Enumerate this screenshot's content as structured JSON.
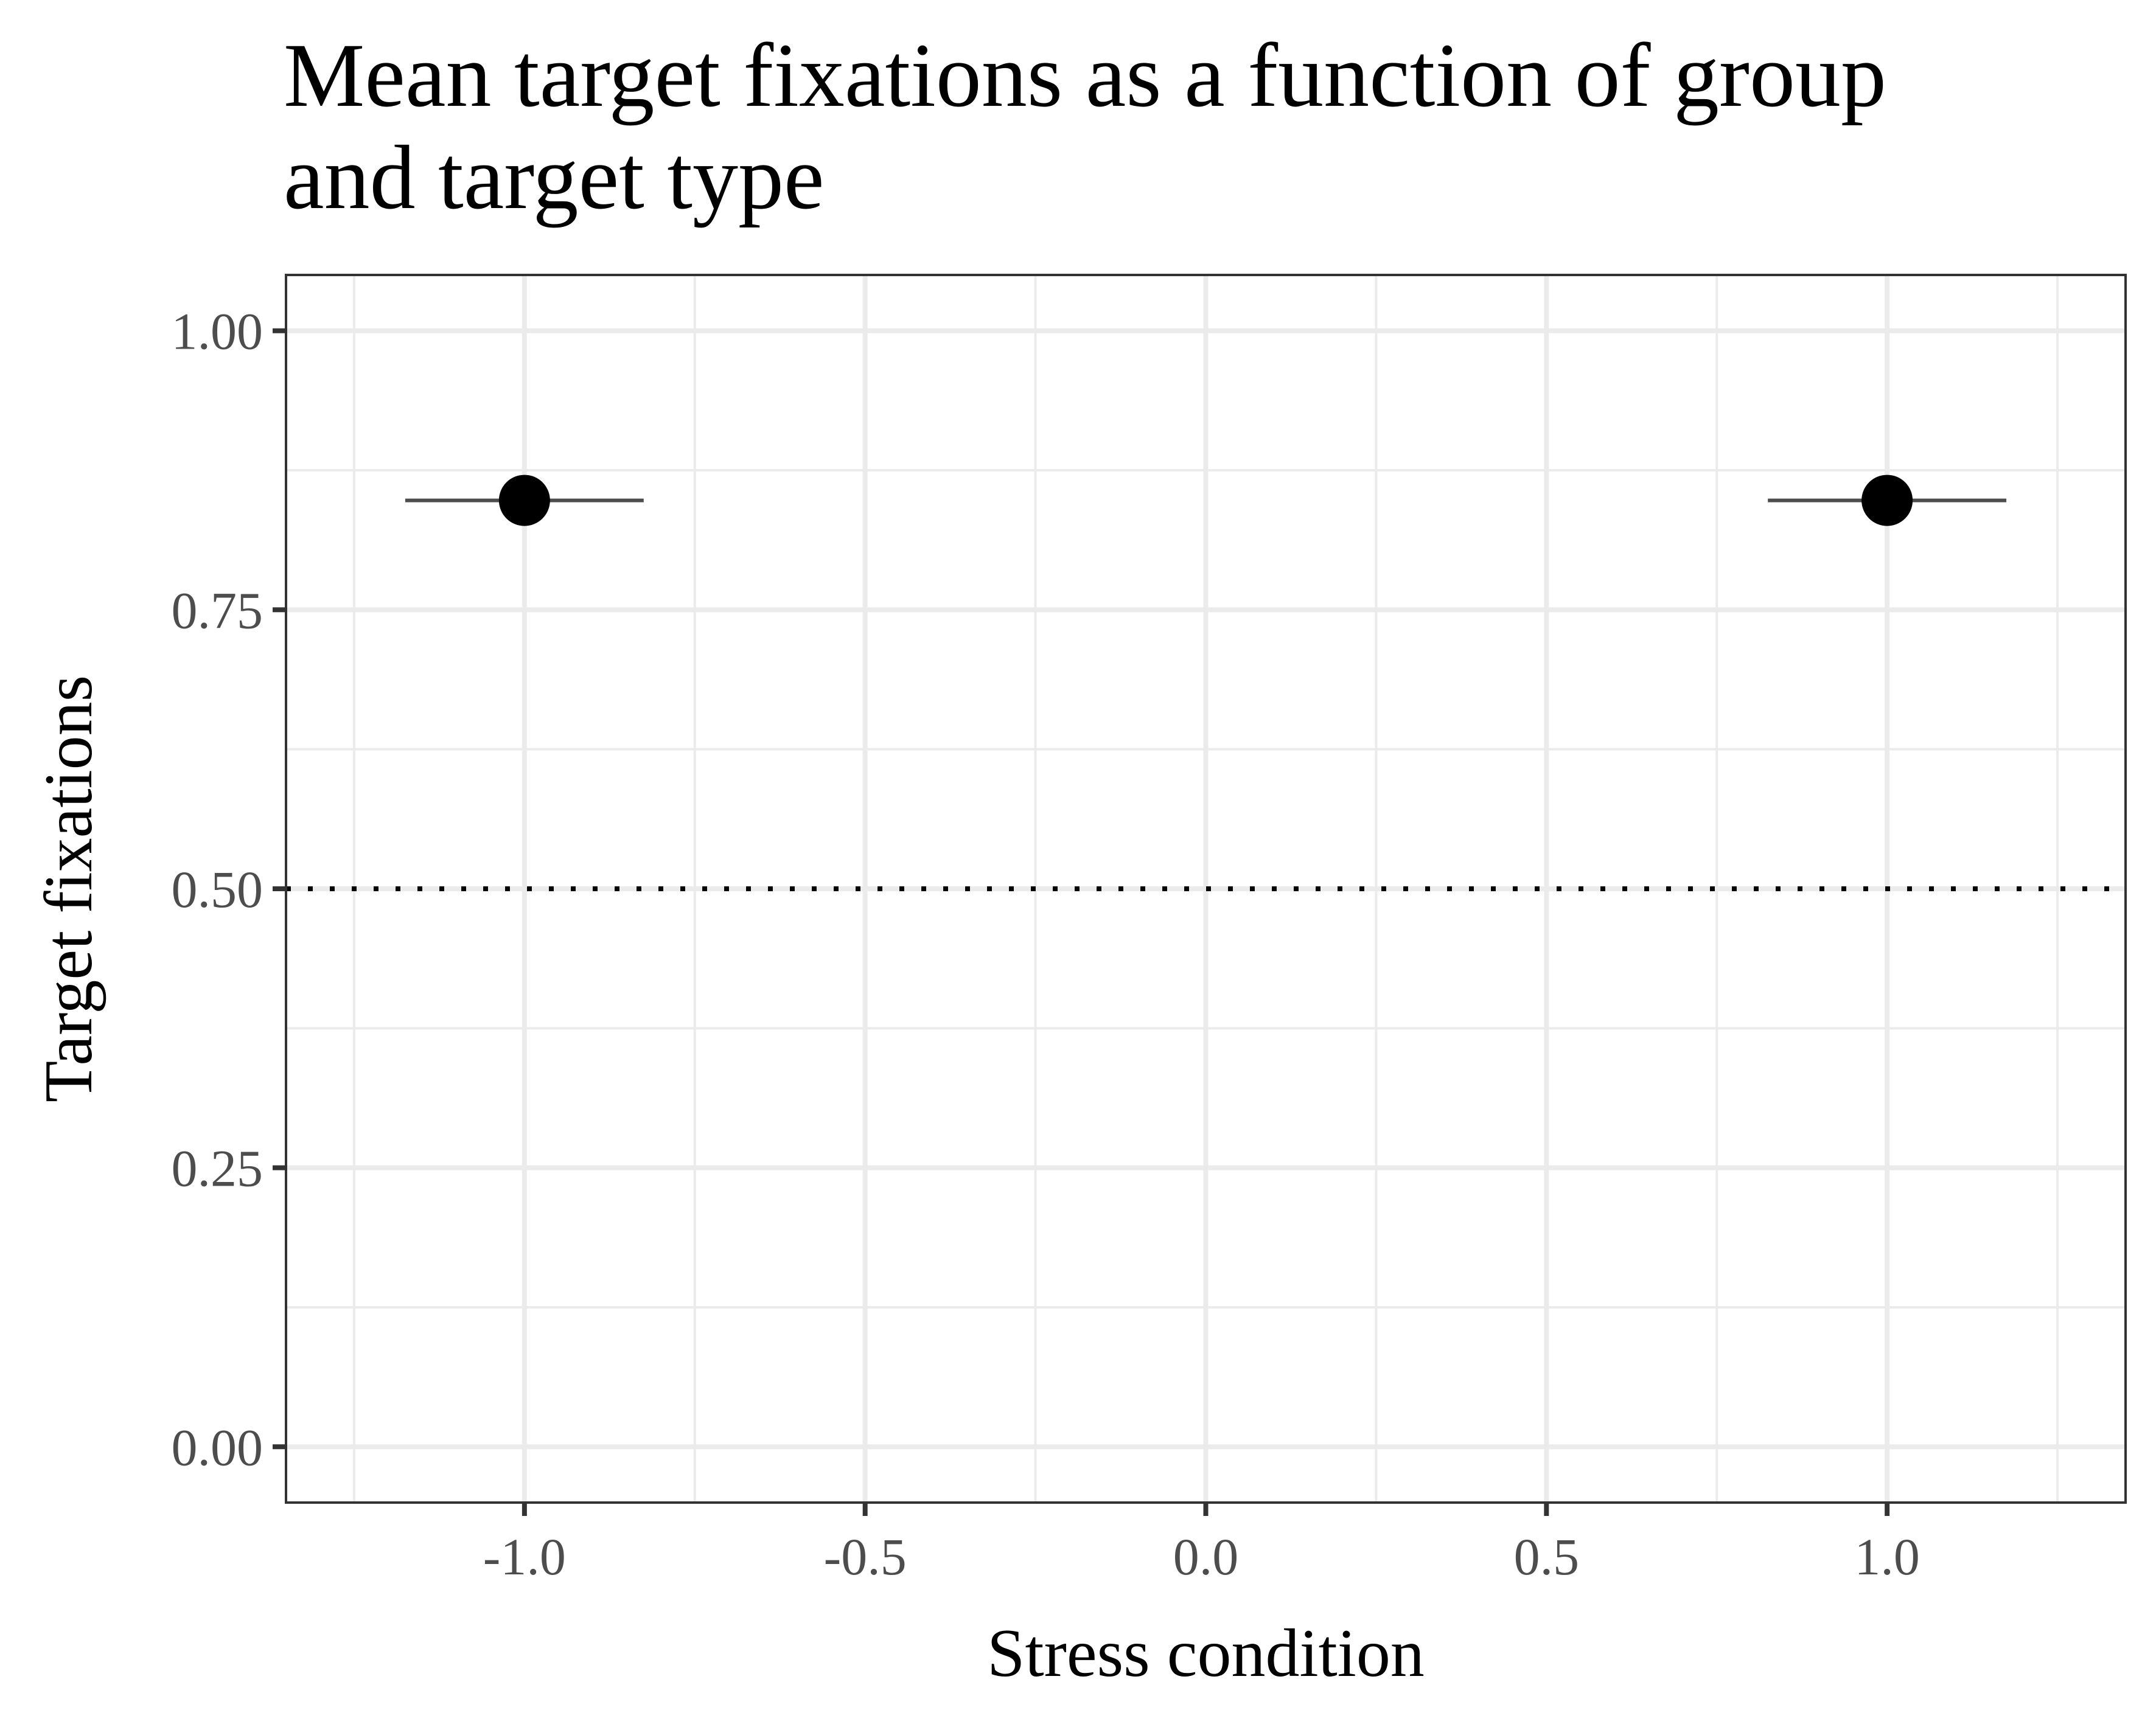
{
  "chart_data": {
    "type": "scatter",
    "title_lines": [
      "Mean target fixations as a function of group",
      "and target type"
    ],
    "xlabel": "Stress condition",
    "ylabel": "Target fixations",
    "xlim": [
      -1.35,
      1.35
    ],
    "ylim": [
      -0.05,
      1.05
    ],
    "x_ticks": [
      -1.0,
      -0.5,
      0.0,
      0.5,
      1.0
    ],
    "x_tick_labels": [
      "-1.0",
      "-0.5",
      "0.0",
      "0.5",
      "1.0"
    ],
    "x_minor_ticks": [
      -1.25,
      -0.75,
      -0.25,
      0.25,
      0.75,
      1.25
    ],
    "y_ticks": [
      0.0,
      0.25,
      0.5,
      0.75,
      1.0
    ],
    "y_tick_labels": [
      "0.00",
      "0.25",
      "0.50",
      "0.75",
      "1.00"
    ],
    "y_minor_ticks": [
      0.125,
      0.375,
      0.625,
      0.875
    ],
    "grid": true,
    "reference_line": {
      "y": 0.5,
      "style": "dotted",
      "color": "#000000"
    },
    "points": [
      {
        "x": -1.0,
        "y": 0.848,
        "xmin": -1.175,
        "xmax": -0.825
      },
      {
        "x": 1.0,
        "y": 0.848,
        "xmin": 0.825,
        "xmax": 1.175
      }
    ],
    "colors": {
      "point": "#000000",
      "errorbar": "#4d4d4d",
      "grid": "#ebebeb",
      "panel_border": "#333333"
    }
  }
}
